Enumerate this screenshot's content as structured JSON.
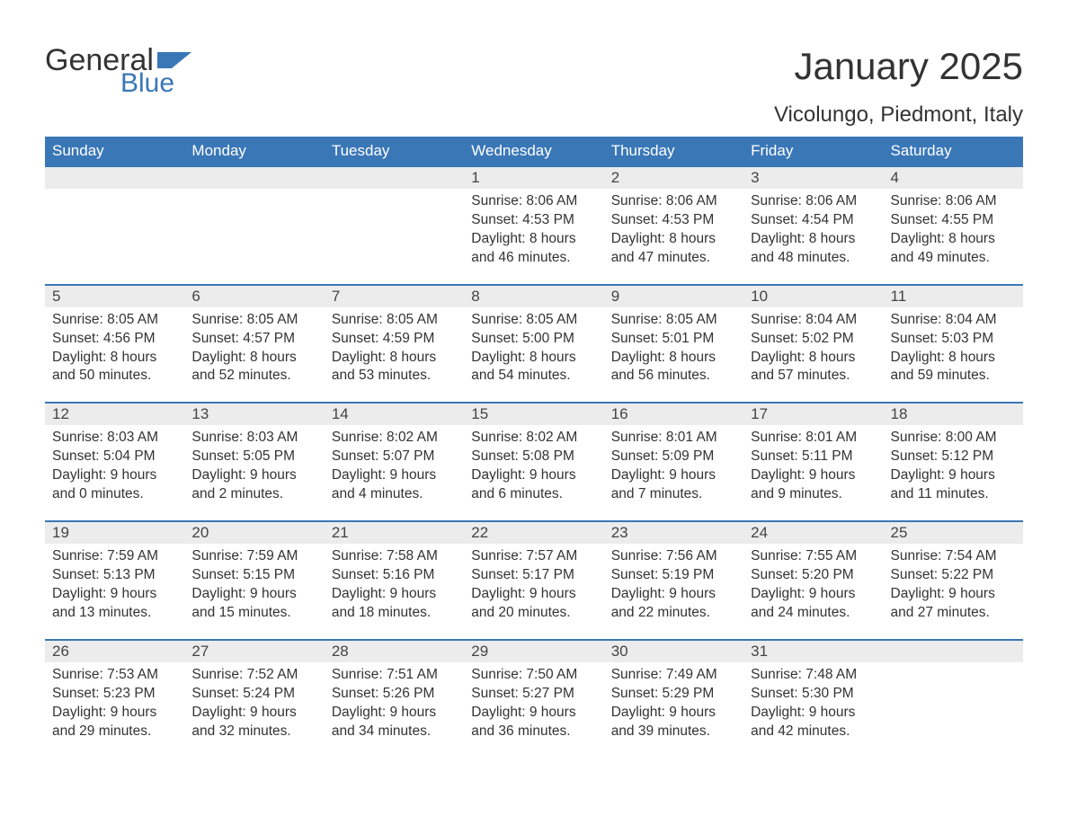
{
  "logo": {
    "word1": "General",
    "word2": "Blue",
    "brand_color": "#3a77b7"
  },
  "title": "January 2025",
  "subtitle": "Vicolungo, Piedmont, Italy",
  "colors": {
    "header_bg": "#3a77b7",
    "header_text": "#ffffff",
    "daynum_bg": "#ececec",
    "row_border": "#3a77b7",
    "text": "#333333",
    "page_bg": "#ffffff"
  },
  "typography": {
    "title_fontsize": 42,
    "subtitle_fontsize": 24,
    "header_fontsize": 17,
    "daynum_fontsize": 17,
    "cell_fontsize": 15.5
  },
  "day_headers": [
    "Sunday",
    "Monday",
    "Tuesday",
    "Wednesday",
    "Thursday",
    "Friday",
    "Saturday"
  ],
  "labels": {
    "sunrise": "Sunrise:",
    "sunset": "Sunset:",
    "daylight": "Daylight:"
  },
  "weeks": [
    [
      null,
      null,
      null,
      {
        "day": "1",
        "sunrise": "8:06 AM",
        "sunset": "4:53 PM",
        "daylight1": "8 hours",
        "daylight2": "and 46 minutes."
      },
      {
        "day": "2",
        "sunrise": "8:06 AM",
        "sunset": "4:53 PM",
        "daylight1": "8 hours",
        "daylight2": "and 47 minutes."
      },
      {
        "day": "3",
        "sunrise": "8:06 AM",
        "sunset": "4:54 PM",
        "daylight1": "8 hours",
        "daylight2": "and 48 minutes."
      },
      {
        "day": "4",
        "sunrise": "8:06 AM",
        "sunset": "4:55 PM",
        "daylight1": "8 hours",
        "daylight2": "and 49 minutes."
      }
    ],
    [
      {
        "day": "5",
        "sunrise": "8:05 AM",
        "sunset": "4:56 PM",
        "daylight1": "8 hours",
        "daylight2": "and 50 minutes."
      },
      {
        "day": "6",
        "sunrise": "8:05 AM",
        "sunset": "4:57 PM",
        "daylight1": "8 hours",
        "daylight2": "and 52 minutes."
      },
      {
        "day": "7",
        "sunrise": "8:05 AM",
        "sunset": "4:59 PM",
        "daylight1": "8 hours",
        "daylight2": "and 53 minutes."
      },
      {
        "day": "8",
        "sunrise": "8:05 AM",
        "sunset": "5:00 PM",
        "daylight1": "8 hours",
        "daylight2": "and 54 minutes."
      },
      {
        "day": "9",
        "sunrise": "8:05 AM",
        "sunset": "5:01 PM",
        "daylight1": "8 hours",
        "daylight2": "and 56 minutes."
      },
      {
        "day": "10",
        "sunrise": "8:04 AM",
        "sunset": "5:02 PM",
        "daylight1": "8 hours",
        "daylight2": "and 57 minutes."
      },
      {
        "day": "11",
        "sunrise": "8:04 AM",
        "sunset": "5:03 PM",
        "daylight1": "8 hours",
        "daylight2": "and 59 minutes."
      }
    ],
    [
      {
        "day": "12",
        "sunrise": "8:03 AM",
        "sunset": "5:04 PM",
        "daylight1": "9 hours",
        "daylight2": "and 0 minutes."
      },
      {
        "day": "13",
        "sunrise": "8:03 AM",
        "sunset": "5:05 PM",
        "daylight1": "9 hours",
        "daylight2": "and 2 minutes."
      },
      {
        "day": "14",
        "sunrise": "8:02 AM",
        "sunset": "5:07 PM",
        "daylight1": "9 hours",
        "daylight2": "and 4 minutes."
      },
      {
        "day": "15",
        "sunrise": "8:02 AM",
        "sunset": "5:08 PM",
        "daylight1": "9 hours",
        "daylight2": "and 6 minutes."
      },
      {
        "day": "16",
        "sunrise": "8:01 AM",
        "sunset": "5:09 PM",
        "daylight1": "9 hours",
        "daylight2": "and 7 minutes."
      },
      {
        "day": "17",
        "sunrise": "8:01 AM",
        "sunset": "5:11 PM",
        "daylight1": "9 hours",
        "daylight2": "and 9 minutes."
      },
      {
        "day": "18",
        "sunrise": "8:00 AM",
        "sunset": "5:12 PM",
        "daylight1": "9 hours",
        "daylight2": "and 11 minutes."
      }
    ],
    [
      {
        "day": "19",
        "sunrise": "7:59 AM",
        "sunset": "5:13 PM",
        "daylight1": "9 hours",
        "daylight2": "and 13 minutes."
      },
      {
        "day": "20",
        "sunrise": "7:59 AM",
        "sunset": "5:15 PM",
        "daylight1": "9 hours",
        "daylight2": "and 15 minutes."
      },
      {
        "day": "21",
        "sunrise": "7:58 AM",
        "sunset": "5:16 PM",
        "daylight1": "9 hours",
        "daylight2": "and 18 minutes."
      },
      {
        "day": "22",
        "sunrise": "7:57 AM",
        "sunset": "5:17 PM",
        "daylight1": "9 hours",
        "daylight2": "and 20 minutes."
      },
      {
        "day": "23",
        "sunrise": "7:56 AM",
        "sunset": "5:19 PM",
        "daylight1": "9 hours",
        "daylight2": "and 22 minutes."
      },
      {
        "day": "24",
        "sunrise": "7:55 AM",
        "sunset": "5:20 PM",
        "daylight1": "9 hours",
        "daylight2": "and 24 minutes."
      },
      {
        "day": "25",
        "sunrise": "7:54 AM",
        "sunset": "5:22 PM",
        "daylight1": "9 hours",
        "daylight2": "and 27 minutes."
      }
    ],
    [
      {
        "day": "26",
        "sunrise": "7:53 AM",
        "sunset": "5:23 PM",
        "daylight1": "9 hours",
        "daylight2": "and 29 minutes."
      },
      {
        "day": "27",
        "sunrise": "7:52 AM",
        "sunset": "5:24 PM",
        "daylight1": "9 hours",
        "daylight2": "and 32 minutes."
      },
      {
        "day": "28",
        "sunrise": "7:51 AM",
        "sunset": "5:26 PM",
        "daylight1": "9 hours",
        "daylight2": "and 34 minutes."
      },
      {
        "day": "29",
        "sunrise": "7:50 AM",
        "sunset": "5:27 PM",
        "daylight1": "9 hours",
        "daylight2": "and 36 minutes."
      },
      {
        "day": "30",
        "sunrise": "7:49 AM",
        "sunset": "5:29 PM",
        "daylight1": "9 hours",
        "daylight2": "and 39 minutes."
      },
      {
        "day": "31",
        "sunrise": "7:48 AM",
        "sunset": "5:30 PM",
        "daylight1": "9 hours",
        "daylight2": "and 42 minutes."
      },
      null
    ]
  ]
}
